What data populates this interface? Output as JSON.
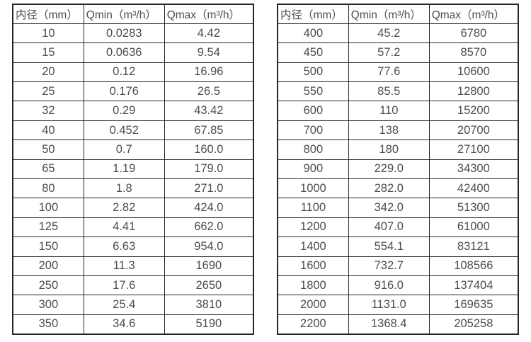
{
  "colors": {
    "border": "#262626",
    "text": "#4d4d4d",
    "background": "#ffffff"
  },
  "tables": [
    {
      "name": "flow-range-table-small-diameters",
      "headers": [
        "内径（mm）",
        "Qmin（m³/h）",
        "Qmax（m³/h）"
      ],
      "rows": [
        [
          "10",
          "0.0283",
          "4.42"
        ],
        [
          "15",
          "0.0636",
          "9.54"
        ],
        [
          "20",
          "0.12",
          "16.96"
        ],
        [
          "25",
          "0.176",
          "26.5"
        ],
        [
          "32",
          "0.29",
          "43.42"
        ],
        [
          "40",
          "0.452",
          "67.85"
        ],
        [
          "50",
          "0.7",
          "160.0"
        ],
        [
          "65",
          "1.19",
          "179.0"
        ],
        [
          "80",
          "1.8",
          "271.0"
        ],
        [
          "100",
          "2.82",
          "424.0"
        ],
        [
          "125",
          "4.41",
          "662.0"
        ],
        [
          "150",
          "6.63",
          "954.0"
        ],
        [
          "200",
          "11.3",
          "1690"
        ],
        [
          "250",
          "17.6",
          "2650"
        ],
        [
          "300",
          "25.4",
          "3810"
        ],
        [
          "350",
          "34.6",
          "5190"
        ]
      ]
    },
    {
      "name": "flow-range-table-large-diameters",
      "headers": [
        "内径（mm）",
        "Qmin（m³/h）",
        "Qmax（m³/h）"
      ],
      "rows": [
        [
          "400",
          "45.2",
          "6780"
        ],
        [
          "450",
          "57.2",
          "8570"
        ],
        [
          "500",
          "77.6",
          "10600"
        ],
        [
          "550",
          "85.5",
          "12800"
        ],
        [
          "600",
          "110",
          "15200"
        ],
        [
          "700",
          "138",
          "20700"
        ],
        [
          "800",
          "180",
          "27100"
        ],
        [
          "900",
          "229.0",
          "34300"
        ],
        [
          "1000",
          "282.0",
          "42400"
        ],
        [
          "1100",
          "342.0",
          "51300"
        ],
        [
          "1200",
          "407.0",
          "61000"
        ],
        [
          "1400",
          "554.1",
          "83121"
        ],
        [
          "1600",
          "732.7",
          "108566"
        ],
        [
          "1800",
          "916.0",
          "137404"
        ],
        [
          "2000",
          "1131.0",
          "169635"
        ],
        [
          "2200",
          "1368.4",
          "205258"
        ]
      ]
    }
  ]
}
